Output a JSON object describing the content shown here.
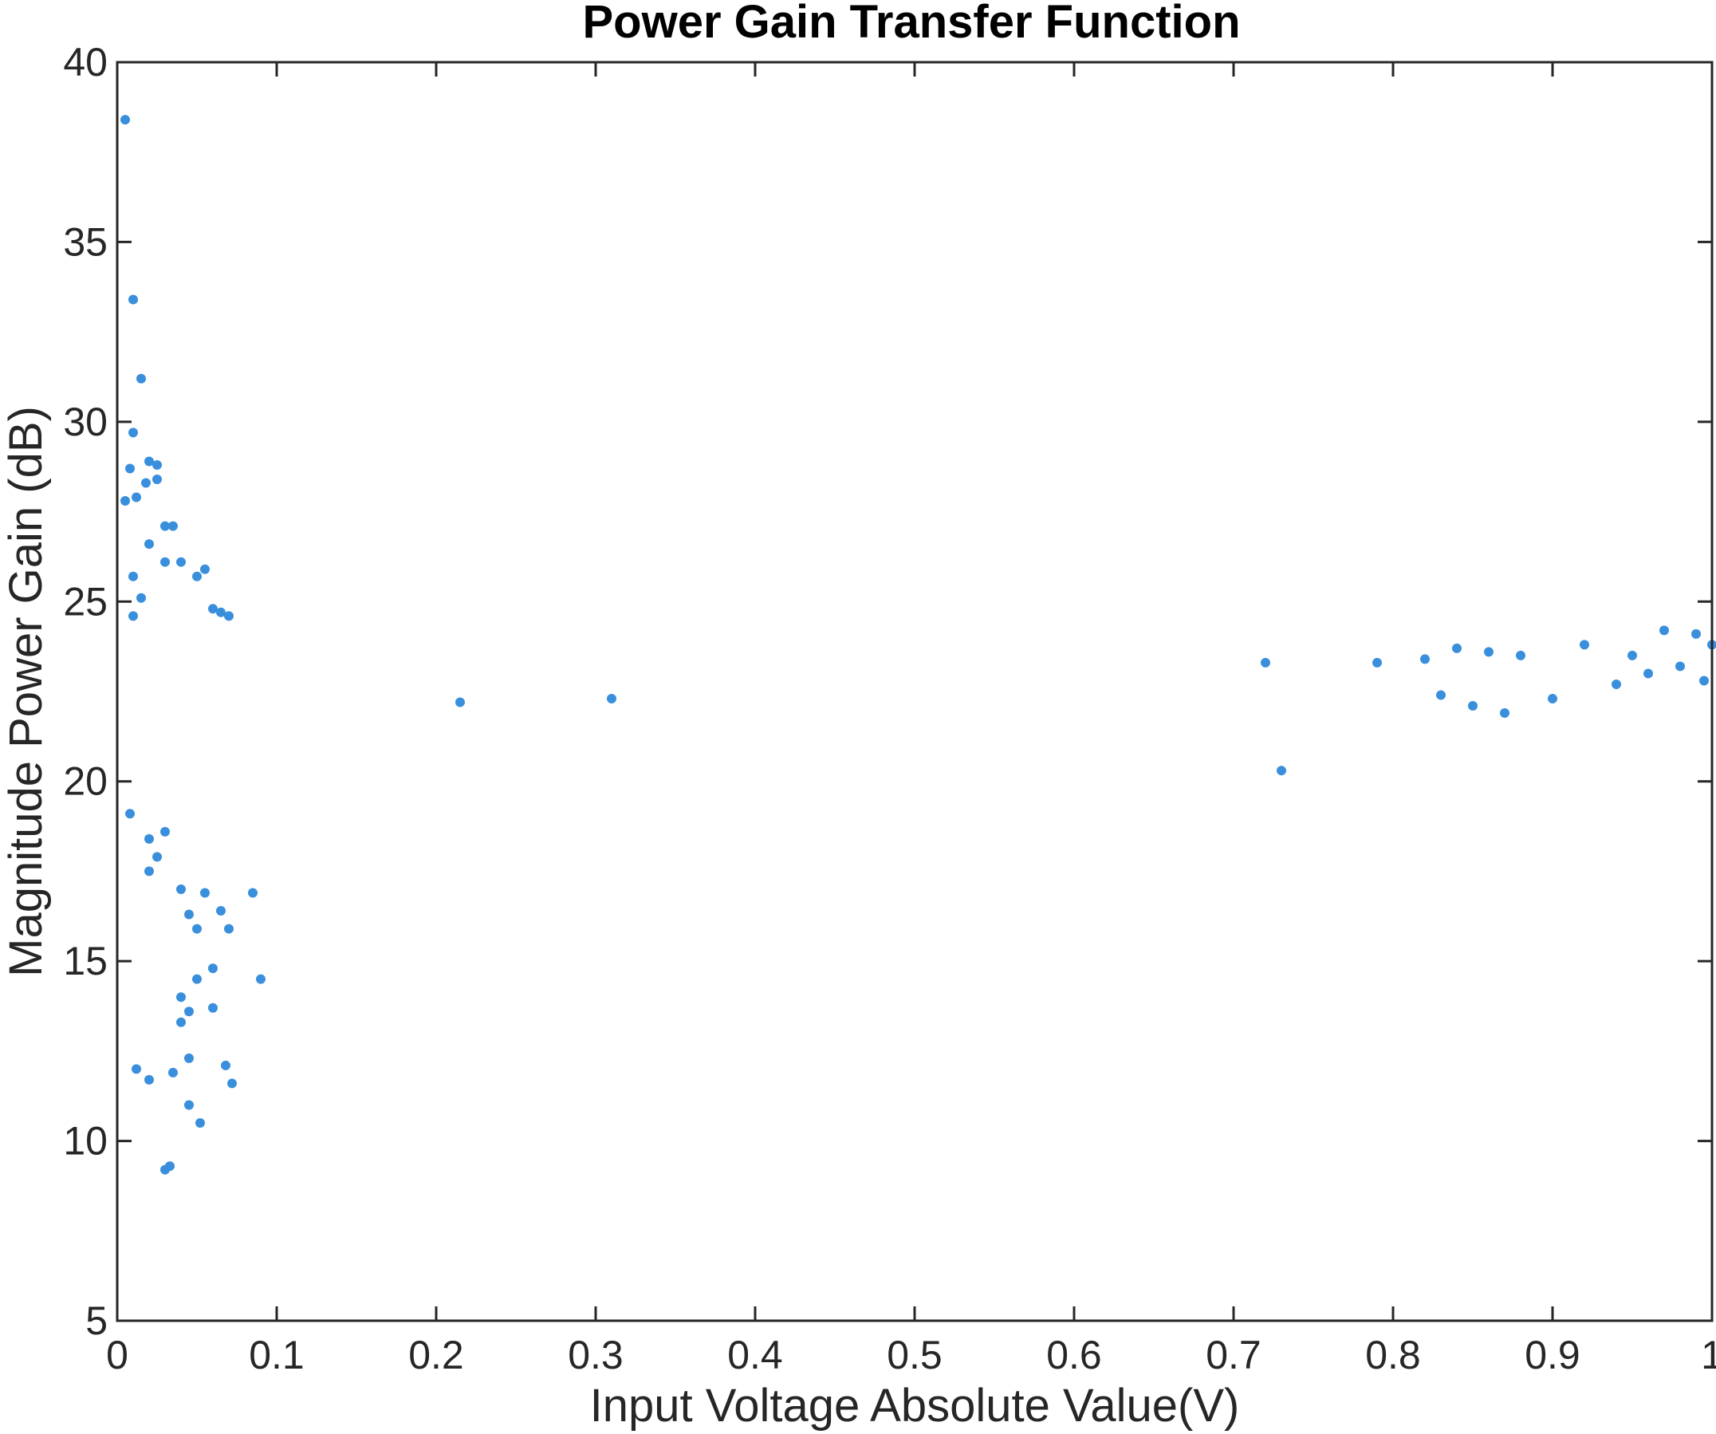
{
  "chart_data": {
    "type": "scatter",
    "title": "Power Gain Transfer Function",
    "xlabel": "Input Voltage Absolute Value(V)",
    "ylabel": "Magnitude Power Gain (dB)",
    "xlim": [
      0,
      1
    ],
    "ylim": [
      5,
      40
    ],
    "xticks": [
      "0",
      "0.1",
      "0.2",
      "0.3",
      "0.4",
      "0.5",
      "0.6",
      "0.7",
      "0.8",
      "0.9",
      "1"
    ],
    "yticks": [
      "5",
      "10",
      "15",
      "20",
      "25",
      "30",
      "35",
      "40"
    ],
    "grid": false,
    "legend": "none",
    "color": "#3a8fdc",
    "series": [
      {
        "points": [
          [
            0.005,
            38.4
          ],
          [
            0.01,
            33.4
          ],
          [
            0.015,
            31.2
          ],
          [
            0.01,
            29.7
          ],
          [
            0.008,
            28.7
          ],
          [
            0.005,
            27.8
          ],
          [
            0.02,
            28.9
          ],
          [
            0.025,
            28.8
          ],
          [
            0.025,
            28.4
          ],
          [
            0.018,
            28.3
          ],
          [
            0.012,
            27.9
          ],
          [
            0.03,
            27.1
          ],
          [
            0.035,
            27.1
          ],
          [
            0.02,
            26.6
          ],
          [
            0.03,
            26.1
          ],
          [
            0.01,
            25.7
          ],
          [
            0.04,
            26.1
          ],
          [
            0.05,
            25.7
          ],
          [
            0.055,
            25.9
          ],
          [
            0.015,
            25.1
          ],
          [
            0.01,
            24.6
          ],
          [
            0.06,
            24.8
          ],
          [
            0.065,
            24.7
          ],
          [
            0.07,
            24.6
          ],
          [
            0.008,
            19.1
          ],
          [
            0.02,
            18.4
          ],
          [
            0.02,
            17.5
          ],
          [
            0.025,
            17.9
          ],
          [
            0.03,
            18.6
          ],
          [
            0.04,
            17.0
          ],
          [
            0.045,
            16.3
          ],
          [
            0.05,
            15.9
          ],
          [
            0.055,
            16.9
          ],
          [
            0.065,
            16.4
          ],
          [
            0.07,
            15.9
          ],
          [
            0.085,
            16.9
          ],
          [
            0.09,
            14.5
          ],
          [
            0.06,
            14.8
          ],
          [
            0.05,
            14.5
          ],
          [
            0.04,
            14.0
          ],
          [
            0.04,
            13.3
          ],
          [
            0.045,
            13.6
          ],
          [
            0.06,
            13.7
          ],
          [
            0.012,
            12.0
          ],
          [
            0.02,
            11.7
          ],
          [
            0.035,
            11.9
          ],
          [
            0.045,
            12.3
          ],
          [
            0.068,
            12.1
          ],
          [
            0.072,
            11.6
          ],
          [
            0.045,
            11.0
          ],
          [
            0.052,
            10.5
          ],
          [
            0.03,
            9.2
          ],
          [
            0.033,
            9.3
          ],
          [
            0.31,
            22.3
          ],
          [
            0.215,
            22.2
          ],
          [
            0.72,
            23.3
          ],
          [
            0.73,
            20.3
          ],
          [
            0.79,
            23.3
          ],
          [
            0.82,
            23.4
          ],
          [
            0.84,
            23.7
          ],
          [
            0.86,
            23.6
          ],
          [
            0.88,
            23.5
          ],
          [
            0.92,
            23.8
          ],
          [
            0.95,
            23.5
          ],
          [
            0.97,
            24.2
          ],
          [
            0.99,
            24.1
          ],
          [
            1.0,
            23.8
          ],
          [
            0.98,
            23.2
          ],
          [
            0.995,
            22.8
          ],
          [
            0.96,
            23.0
          ],
          [
            0.94,
            22.7
          ],
          [
            0.9,
            22.3
          ],
          [
            0.87,
            21.9
          ],
          [
            0.85,
            22.1
          ],
          [
            0.83,
            22.4
          ]
        ]
      }
    ]
  }
}
